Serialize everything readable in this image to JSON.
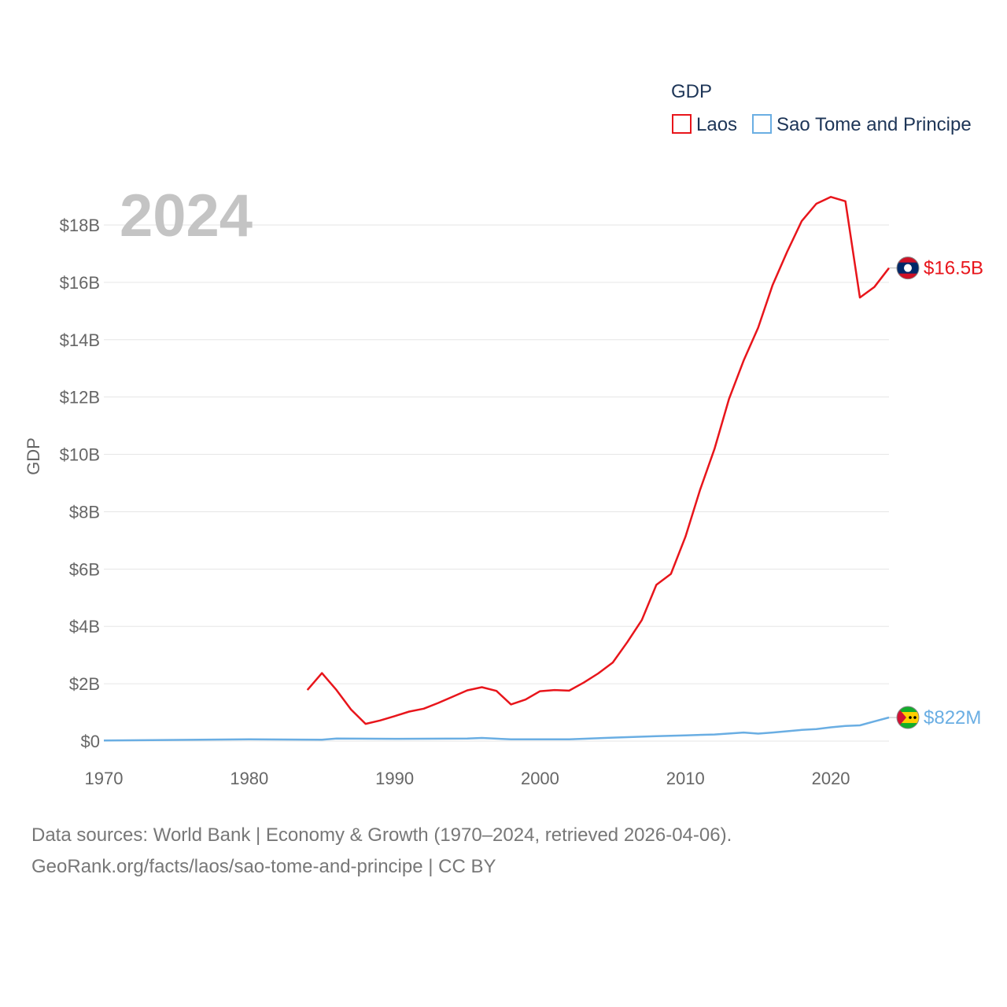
{
  "chart_data": {
    "type": "line",
    "year_label": "2024",
    "ylabel": "GDP",
    "xlim": [
      1970,
      2024
    ],
    "ylim": [
      0,
      18
    ],
    "y_unit": "billion USD",
    "x_ticks": [
      1970,
      1980,
      1990,
      2000,
      2010,
      2020
    ],
    "y_ticks": [
      {
        "value": 0,
        "label": "$0"
      },
      {
        "value": 2,
        "label": "$2B"
      },
      {
        "value": 4,
        "label": "$4B"
      },
      {
        "value": 6,
        "label": "$6B"
      },
      {
        "value": 8,
        "label": "$8B"
      },
      {
        "value": 10,
        "label": "$10B"
      },
      {
        "value": 12,
        "label": "$12B"
      },
      {
        "value": 14,
        "label": "$14B"
      },
      {
        "value": 16,
        "label": "$16B"
      },
      {
        "value": 18,
        "label": "$18B"
      }
    ],
    "legend": {
      "title": "GDP",
      "position": "top-right"
    },
    "series": [
      {
        "name": "Laos",
        "color": "#e8151b",
        "end_label": "$16.5B",
        "flag": "laos-flag",
        "points": [
          [
            1984,
            1.78
          ],
          [
            1985,
            2.37
          ],
          [
            1986,
            1.78
          ],
          [
            1987,
            1.1
          ],
          [
            1988,
            0.6
          ],
          [
            1989,
            0.72
          ],
          [
            1990,
            0.87
          ],
          [
            1991,
            1.03
          ],
          [
            1992,
            1.13
          ],
          [
            1993,
            1.33
          ],
          [
            1994,
            1.55
          ],
          [
            1995,
            1.77
          ],
          [
            1996,
            1.88
          ],
          [
            1997,
            1.75
          ],
          [
            1998,
            1.28
          ],
          [
            1999,
            1.45
          ],
          [
            2000,
            1.74
          ],
          [
            2001,
            1.78
          ],
          [
            2002,
            1.76
          ],
          [
            2003,
            2.04
          ],
          [
            2004,
            2.36
          ],
          [
            2005,
            2.74
          ],
          [
            2006,
            3.45
          ],
          [
            2007,
            4.22
          ],
          [
            2008,
            5.45
          ],
          [
            2009,
            5.83
          ],
          [
            2010,
            7.13
          ],
          [
            2011,
            8.75
          ],
          [
            2012,
            10.19
          ],
          [
            2013,
            11.94
          ],
          [
            2014,
            13.27
          ],
          [
            2015,
            14.42
          ],
          [
            2016,
            15.91
          ],
          [
            2017,
            17.07
          ],
          [
            2018,
            18.14
          ],
          [
            2019,
            18.74
          ],
          [
            2020,
            18.98
          ],
          [
            2021,
            18.83
          ],
          [
            2022,
            15.47
          ],
          [
            2023,
            15.84
          ],
          [
            2024,
            16.5
          ]
        ]
      },
      {
        "name": "Sao Tome and Principe",
        "color": "#6aaee3",
        "end_label": "$822M",
        "flag": "sao-tome-flag",
        "points": [
          [
            1970,
            0.02
          ],
          [
            1975,
            0.04
          ],
          [
            1980,
            0.06
          ],
          [
            1985,
            0.05
          ],
          [
            1986,
            0.09
          ],
          [
            1990,
            0.08
          ],
          [
            1995,
            0.09
          ],
          [
            1996,
            0.11
          ],
          [
            1998,
            0.06
          ],
          [
            2002,
            0.06
          ],
          [
            2005,
            0.12
          ],
          [
            2008,
            0.17
          ],
          [
            2010,
            0.2
          ],
          [
            2012,
            0.23
          ],
          [
            2014,
            0.3
          ],
          [
            2015,
            0.26
          ],
          [
            2016,
            0.3
          ],
          [
            2018,
            0.39
          ],
          [
            2019,
            0.42
          ],
          [
            2020,
            0.48
          ],
          [
            2021,
            0.53
          ],
          [
            2022,
            0.55
          ],
          [
            2023,
            0.69
          ],
          [
            2024,
            0.822
          ]
        ]
      }
    ]
  },
  "footer": {
    "line1": "Data sources: World Bank | Economy & Growth (1970–2024, retrieved 2026-04-06).",
    "line2": "GeoRank.org/facts/laos/sao-tome-and-principe | CC BY"
  }
}
